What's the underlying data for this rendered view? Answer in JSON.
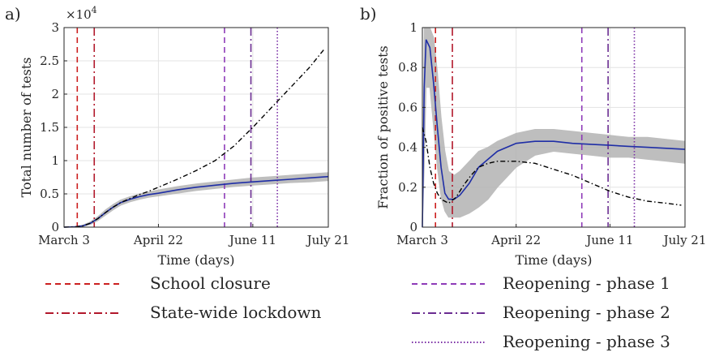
{
  "x_axis": {
    "ticks": [
      {
        "day": 0,
        "label": "March 3"
      },
      {
        "day": 50,
        "label": "April 22"
      },
      {
        "day": 100,
        "label": "June 11"
      },
      {
        "day": 140,
        "label": "July 21"
      }
    ]
  },
  "events": [
    {
      "name": "School closure",
      "day": 7,
      "color": "#cc1f1f",
      "dash": "7,5"
    },
    {
      "name": "State-wide lockdown",
      "day": 16,
      "color": "#b2182b",
      "dash": "10,4,2,4"
    },
    {
      "name": "Reopening - phase 1",
      "day": 85,
      "color": "#8e3bb8",
      "dash": "7,5"
    },
    {
      "name": "Reopening - phase 2",
      "day": 99,
      "color": "#6a2c91",
      "dash": "10,4,2,4"
    },
    {
      "name": "Reopening - phase 3",
      "day": 113,
      "color": "#7b2fa6",
      "dash": "1.5,2.5"
    }
  ],
  "chart_data": [
    {
      "type": "line",
      "panel_label": "a)",
      "xlabel": "Time (days)",
      "ylabel": "Total number of tests",
      "exponent_label": "×10",
      "exponent_power": "4",
      "xlim": [
        0,
        140
      ],
      "ylim": [
        0,
        3
      ],
      "yticks": [
        "0",
        "0.5",
        "1",
        "1.5",
        "2",
        "2.5",
        "3"
      ],
      "grid": true,
      "series": [
        {
          "role": "model_fit",
          "color": "#1f2ea6",
          "style": "solid",
          "x": [
            0,
            6,
            10,
            14,
            18,
            22,
            26,
            30,
            35,
            40,
            45,
            50,
            60,
            70,
            80,
            90,
            100,
            110,
            120,
            130,
            140
          ],
          "values": [
            0,
            0.005,
            0.02,
            0.06,
            0.13,
            0.22,
            0.3,
            0.37,
            0.42,
            0.46,
            0.49,
            0.51,
            0.56,
            0.6,
            0.63,
            0.66,
            0.68,
            0.7,
            0.72,
            0.74,
            0.76
          ]
        },
        {
          "role": "observed",
          "color": "#000000",
          "style": "dashdot",
          "x": [
            0,
            6,
            10,
            14,
            18,
            22,
            26,
            30,
            35,
            40,
            45,
            50,
            55,
            60,
            70,
            80,
            90,
            100,
            110,
            120,
            130,
            138
          ],
          "values": [
            0,
            0.005,
            0.02,
            0.06,
            0.13,
            0.22,
            0.3,
            0.37,
            0.43,
            0.49,
            0.54,
            0.6,
            0.66,
            0.72,
            0.85,
            1.0,
            1.22,
            1.5,
            1.8,
            2.1,
            2.4,
            2.68
          ]
        }
      ],
      "band": {
        "x": [
          0,
          6,
          10,
          14,
          18,
          22,
          26,
          30,
          35,
          40,
          45,
          50,
          60,
          70,
          80,
          90,
          100,
          110,
          120,
          130,
          140
        ],
        "low": [
          0,
          0.003,
          0.01,
          0.04,
          0.1,
          0.18,
          0.26,
          0.33,
          0.38,
          0.42,
          0.45,
          0.47,
          0.51,
          0.55,
          0.58,
          0.61,
          0.63,
          0.65,
          0.67,
          0.68,
          0.7
        ],
        "high": [
          0,
          0.008,
          0.03,
          0.08,
          0.16,
          0.26,
          0.34,
          0.41,
          0.46,
          0.5,
          0.53,
          0.56,
          0.61,
          0.65,
          0.68,
          0.71,
          0.74,
          0.76,
          0.78,
          0.8,
          0.82
        ],
        "color": "#b3b3b3"
      }
    },
    {
      "type": "line",
      "panel_label": "b)",
      "xlabel": "Time (days)",
      "ylabel": "Fraction of positive tests",
      "xlim": [
        0,
        140
      ],
      "ylim": [
        0,
        1
      ],
      "yticks": [
        "0",
        "0.2",
        "0.4",
        "0.6",
        "0.8",
        "1"
      ],
      "grid": true,
      "series": [
        {
          "role": "model_fit",
          "color": "#1f2ea6",
          "style": "solid",
          "x": [
            0,
            1,
            2,
            4,
            6,
            8,
            10,
            12,
            14,
            17,
            20,
            25,
            30,
            40,
            50,
            60,
            70,
            80,
            90,
            100,
            110,
            120,
            130,
            140
          ],
          "values": [
            0,
            0.7,
            0.94,
            0.9,
            0.72,
            0.5,
            0.3,
            0.17,
            0.14,
            0.14,
            0.16,
            0.22,
            0.3,
            0.38,
            0.42,
            0.43,
            0.43,
            0.42,
            0.415,
            0.41,
            0.405,
            0.4,
            0.395,
            0.39
          ]
        },
        {
          "role": "observed",
          "color": "#000000",
          "style": "dashdot",
          "x": [
            0,
            2,
            4,
            6,
            8,
            10,
            14,
            18,
            22,
            26,
            30,
            35,
            40,
            45,
            50,
            60,
            70,
            80,
            90,
            100,
            110,
            120,
            130,
            138
          ],
          "values": [
            0.5,
            0.43,
            0.3,
            0.22,
            0.17,
            0.14,
            0.12,
            0.15,
            0.21,
            0.26,
            0.3,
            0.32,
            0.33,
            0.33,
            0.33,
            0.32,
            0.29,
            0.26,
            0.22,
            0.18,
            0.15,
            0.13,
            0.12,
            0.11
          ]
        }
      ],
      "band": {
        "x": [
          0,
          1,
          2,
          4,
          6,
          8,
          10,
          12,
          14,
          17,
          20,
          25,
          30,
          35,
          40,
          50,
          60,
          70,
          80,
          90,
          100,
          110,
          120,
          130,
          140
        ],
        "low": [
          0,
          0.3,
          0.7,
          0.7,
          0.5,
          0.3,
          0.15,
          0.08,
          0.05,
          0.05,
          0.05,
          0.07,
          0.1,
          0.14,
          0.2,
          0.3,
          0.36,
          0.38,
          0.37,
          0.36,
          0.35,
          0.35,
          0.34,
          0.33,
          0.32
        ],
        "high": [
          0,
          1.0,
          1.0,
          1.0,
          0.95,
          0.78,
          0.55,
          0.38,
          0.28,
          0.26,
          0.28,
          0.33,
          0.38,
          0.4,
          0.43,
          0.47,
          0.49,
          0.49,
          0.48,
          0.47,
          0.46,
          0.45,
          0.45,
          0.44,
          0.43
        ],
        "color": "#b3b3b3"
      }
    }
  ]
}
